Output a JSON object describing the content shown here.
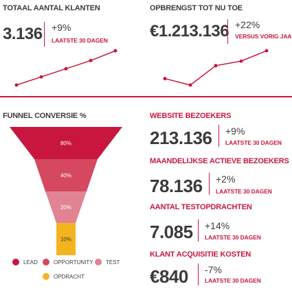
{
  "top_left": {
    "title": "TOTAAL AANTAL KLANTEN",
    "value": "3.136",
    "change": "+9%",
    "period": "LAATSTE 30 DAGEN",
    "sparkline": [
      1,
      2,
      3,
      4,
      5.2
    ]
  },
  "top_right": {
    "title": "OPBRENGST TOT NU TOE",
    "value": "€1.213.136",
    "change": "+22%",
    "period": "VERSUS VORIG JAAR",
    "sparkline": [
      2,
      1,
      4,
      4.7,
      6.3
    ]
  },
  "funnel": {
    "title": "FUNNEL CONVERSIE %",
    "segments": [
      {
        "label": "80%",
        "value": 80,
        "color": "#c8163f"
      },
      {
        "label": "40%",
        "value": 40,
        "color": "#d54860"
      },
      {
        "label": "20%",
        "value": 20,
        "color": "#e28393"
      },
      {
        "label": "10%",
        "value": 10,
        "color": "#f4b41f"
      }
    ],
    "legend": [
      {
        "label": "LEAD",
        "color": "#c8163f"
      },
      {
        "label": "OPPORTUNITY",
        "color": "#d54860"
      },
      {
        "label": "TEST",
        "color": "#e28393"
      },
      {
        "label": "OPDRACHT",
        "color": "#f4b41f"
      }
    ]
  },
  "metrics": [
    {
      "title": "WEBSITE BEZOEKERS",
      "value": "213.136",
      "change": "+9%",
      "period": "LAATSTE 30 DAGEN"
    },
    {
      "title": "MAANDELIJKSE ACTIEVE BEZOEKERS",
      "value": "78.136",
      "change": "+2%",
      "period": "LAATSTE 30 DAGEN"
    },
    {
      "title": "AANTAL TESTOPDRACHTEN",
      "value": "7.085",
      "change": "+14%",
      "period": "LAATSTE 30 DAGEN"
    },
    {
      "title": "KLANT ACQUISITIE KOSTEN",
      "value": "€840",
      "change": "-7%",
      "period": "LAATSTE 30 DAGEN"
    }
  ],
  "colors": {
    "accent": "#c8163f",
    "text": "#3b3b3b"
  }
}
